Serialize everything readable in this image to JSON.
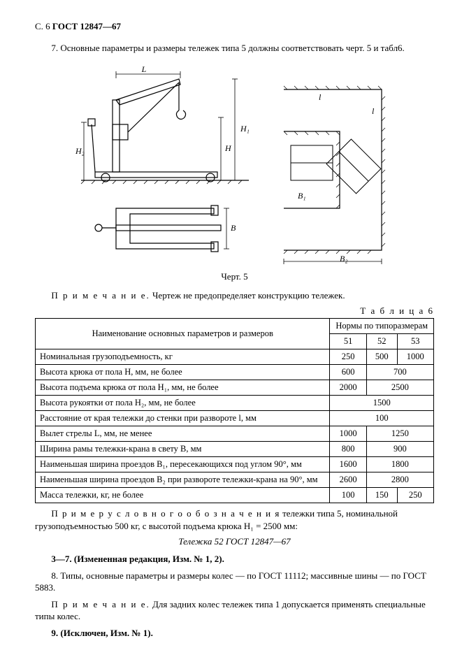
{
  "header": {
    "page_label": "С. 6",
    "standard": "ГОСТ 12847—67"
  },
  "para7": "7. Основные параметры и размеры тележек типа 5 должны соответствовать черт. 5 и табл6.",
  "figure": {
    "caption": "Черт. 5",
    "note_label": "П р и м е ч а н и е.",
    "note_text": "Чертеж не предопределяет конструкцию тележек.",
    "labels": {
      "L_upper": "L",
      "H": "H",
      "H1": "H₁",
      "H2": "H₂",
      "l1": "l",
      "B": "B",
      "B1": "B₁",
      "B2": "B₂",
      "l2": "l",
      "l3": "l"
    }
  },
  "table": {
    "title": "Т а б л и ц а 6",
    "col_name": "Наименование основных параметров и размеров",
    "col_norms": "Нормы по типоразмерам",
    "types": [
      "51",
      "52",
      "53"
    ],
    "rows": [
      {
        "n": "Номинальная грузоподъемность, кг",
        "v": [
          "250",
          "500",
          "1000"
        ],
        "spans": [
          1,
          1,
          1
        ]
      },
      {
        "n": "Высота крюка от пола H, мм, не более",
        "v": [
          "600",
          "700"
        ],
        "spans": [
          1,
          2
        ]
      },
      {
        "n": "Высота подъема крюка от пола H₁, мм, не более",
        "v": [
          "2000",
          "2500"
        ],
        "spans": [
          1,
          2
        ]
      },
      {
        "n": "Высота рукоятки от пола H₂, мм, не более",
        "v": [
          "1500"
        ],
        "spans": [
          3
        ]
      },
      {
        "n": "Расстояние от края тележки до стенки при развороте l, мм",
        "v": [
          "100"
        ],
        "spans": [
          3
        ]
      },
      {
        "n": "Вылет стрелы L, мм, не менее",
        "v": [
          "1000",
          "1250"
        ],
        "spans": [
          1,
          2
        ]
      },
      {
        "n": "Ширина рамы тележки-крана в свету B, мм",
        "v": [
          "800",
          "900"
        ],
        "spans": [
          1,
          2
        ]
      },
      {
        "n": "Наименьшая ширина проездов B₁, пересекающихся под углом 90°, мм",
        "v": [
          "1600",
          "1800"
        ],
        "spans": [
          1,
          2
        ]
      },
      {
        "n": "Наименьшая ширина проездов B₂ при развороте тележки-крана на 90°, мм",
        "v": [
          "2600",
          "2800"
        ],
        "spans": [
          1,
          2
        ]
      },
      {
        "n": "Масса тележки, кг, не более",
        "v": [
          "100",
          "150",
          "250"
        ],
        "spans": [
          1,
          1,
          1
        ]
      }
    ]
  },
  "example": {
    "intro_sp": "П р и м е р   у с л о в н о г о   о б о з н а ч е н и я",
    "intro_rest": " тележки типа 5, номинальной грузоподъемностью 500 кг, с высотой подъема крюка H₁ = 2500 мм:",
    "designation": "Тележка 52 ГОСТ 12847—67"
  },
  "p37": "3—7. (Измененная редакция, Изм. № 1, 2).",
  "p8": "8. Типы, основные параметры и размеры колес — по ГОСТ 11112; массивные шины — по ГОСТ 5883.",
  "note2_label": "П р и м е ч а н и е.",
  "note2_text": " Для задних колес тележек типа 1 допускается применять специальные типы колес.",
  "p9": "9. (Исключен, Изм. № 1)."
}
